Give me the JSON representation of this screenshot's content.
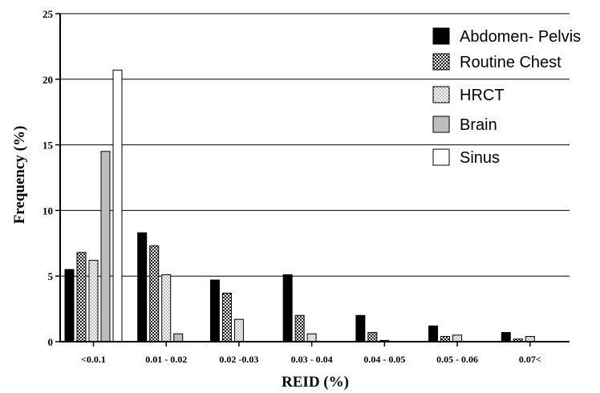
{
  "chart_data": {
    "type": "bar",
    "title": "",
    "xlabel": "REID (%)",
    "ylabel": "Frequency (%)",
    "ylim": [
      0,
      25
    ],
    "yticks": [
      "0",
      "5",
      "10",
      "15",
      "20",
      "25"
    ],
    "grid": "horizontal",
    "legend_position": "top-right",
    "categories": [
      "<0.0.1",
      "0.01 - 0.02",
      "0.02 -0.03",
      "0.03 - 0.04",
      "0.04 - 0.05",
      "0.05 - 0.06",
      "0.07<"
    ],
    "series": [
      {
        "name": "Abdomen- Pelvis",
        "pattern": "solid-black",
        "values": [
          5.5,
          8.3,
          4.7,
          5.1,
          2.0,
          1.2,
          0.7
        ]
      },
      {
        "name": "Routine Chest",
        "pattern": "crosshatch",
        "values": [
          6.8,
          7.3,
          3.7,
          2.0,
          0.7,
          0.4,
          0.2
        ]
      },
      {
        "name": "HRCT",
        "pattern": "dotted",
        "values": [
          6.2,
          5.1,
          1.7,
          0.6,
          0.1,
          0.5,
          0.4
        ]
      },
      {
        "name": "Brain",
        "pattern": "solid-gray",
        "values": [
          14.5,
          0.6,
          0,
          0,
          0,
          0,
          0
        ]
      },
      {
        "name": "Sinus",
        "pattern": "solid-white",
        "values": [
          20.7,
          0,
          0,
          0,
          0,
          0,
          0
        ]
      }
    ]
  }
}
